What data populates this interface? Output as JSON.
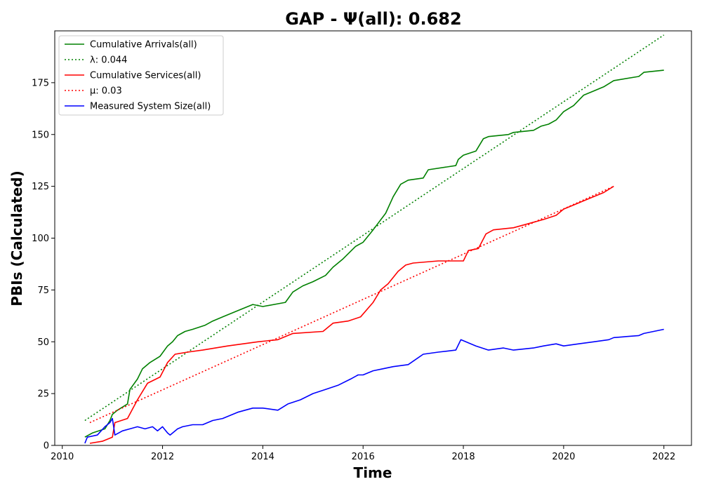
{
  "chart_data": {
    "type": "line",
    "title": "GAP -  Ψ(all): 0.682",
    "xlabel": "Time",
    "ylabel": "PBIs (Calculated)",
    "xlim": [
      2009.85,
      2022.55
    ],
    "ylim": [
      0,
      200
    ],
    "xticks": [
      2010,
      2012,
      2014,
      2016,
      2018,
      2020,
      2022
    ],
    "yticks": [
      0,
      25,
      50,
      75,
      100,
      125,
      150,
      175
    ],
    "grid": false,
    "legend_position": "top-left",
    "series": [
      {
        "name": "Cumulative Arrivals(all)",
        "style": "solid",
        "color": "#008000",
        "x": [
          2010.45,
          2010.6,
          2010.85,
          2010.95,
          2011.0,
          2011.1,
          2011.3,
          2011.35,
          2011.5,
          2011.6,
          2011.75,
          2011.95,
          2012.1,
          2012.2,
          2012.3,
          2012.45,
          2012.6,
          2012.85,
          2013.0,
          2013.2,
          2013.5,
          2013.8,
          2014.0,
          2014.45,
          2014.6,
          2014.8,
          2015.0,
          2015.25,
          2015.4,
          2015.6,
          2015.85,
          2016.0,
          2016.2,
          2016.45,
          2016.6,
          2016.75,
          2016.9,
          2017.2,
          2017.3,
          2017.85,
          2017.9,
          2018.0,
          2018.25,
          2018.4,
          2018.5,
          2018.9,
          2019.0,
          2019.4,
          2019.55,
          2019.7,
          2019.85,
          2020.0,
          2020.2,
          2020.4,
          2020.6,
          2020.8,
          2021.0,
          2021.5,
          2021.6,
          2022.0
        ],
        "y": [
          4,
          6,
          8,
          12,
          15,
          17,
          20,
          27,
          32,
          37,
          40,
          43,
          48,
          50,
          53,
          55,
          56,
          58,
          60,
          62,
          65,
          68,
          67,
          69,
          74,
          77,
          79,
          82,
          86,
          90,
          96,
          98,
          104,
          112,
          120,
          126,
          128,
          129,
          133,
          135,
          138,
          140,
          142,
          148,
          149,
          150,
          151,
          152,
          154,
          155,
          157,
          161,
          164,
          169,
          171,
          173,
          176,
          178,
          180,
          181
        ]
      },
      {
        "name": "λ: 0.044",
        "style": "dotted",
        "color": "#008000",
        "x": [
          2010.45,
          2022.0
        ],
        "y": [
          12,
          198
        ]
      },
      {
        "name": "Cumulative Services(all)",
        "style": "solid",
        "color": "#ff0000",
        "x": [
          2010.55,
          2010.8,
          2011.0,
          2011.05,
          2011.3,
          2011.5,
          2011.7,
          2011.95,
          2012.1,
          2012.25,
          2012.5,
          2012.8,
          2013.3,
          2013.9,
          2014.3,
          2014.6,
          2015.2,
          2015.4,
          2015.7,
          2015.95,
          2016.2,
          2016.35,
          2016.5,
          2016.7,
          2016.85,
          2017.0,
          2017.5,
          2018.0,
          2018.1,
          2018.3,
          2018.45,
          2018.6,
          2019.0,
          2019.3,
          2019.6,
          2019.85,
          2020.0,
          2020.2,
          2020.4,
          2020.6,
          2020.8,
          2021.0
        ],
        "y": [
          1,
          2,
          4,
          11,
          13,
          22,
          30,
          33,
          40,
          44,
          45,
          46,
          48,
          50,
          51,
          54,
          55,
          59,
          60,
          62,
          69,
          75,
          78,
          84,
          87,
          88,
          89,
          89,
          94,
          95,
          102,
          104,
          105,
          107,
          109,
          111,
          114,
          116,
          118,
          120,
          122,
          125
        ]
      },
      {
        "name": "μ: 0.03",
        "style": "dotted",
        "color": "#ff0000",
        "x": [
          2010.55,
          2021.0
        ],
        "y": [
          11,
          125
        ]
      },
      {
        "name": "Measured System Size(all)",
        "style": "solid",
        "color": "#0000ff",
        "x": [
          2010.45,
          2010.5,
          2010.7,
          2010.85,
          2010.95,
          2011.0,
          2011.05,
          2011.2,
          2011.35,
          2011.5,
          2011.65,
          2011.8,
          2011.9,
          2012.0,
          2012.1,
          2012.15,
          2012.3,
          2012.4,
          2012.6,
          2012.8,
          2013.0,
          2013.2,
          2013.5,
          2013.8,
          2014.0,
          2014.3,
          2014.5,
          2014.75,
          2015.0,
          2015.25,
          2015.5,
          2015.75,
          2015.9,
          2016.0,
          2016.2,
          2016.4,
          2016.6,
          2016.9,
          2017.2,
          2017.5,
          2017.85,
          2017.95,
          2018.25,
          2018.5,
          2018.8,
          2019.0,
          2019.4,
          2019.6,
          2019.85,
          2020.0,
          2020.3,
          2020.6,
          2020.9,
          2021.0,
          2021.5,
          2021.6,
          2022.0
        ],
        "y": [
          1,
          4,
          5,
          9,
          11,
          13,
          5,
          7,
          8,
          9,
          8,
          9,
          7,
          9,
          6,
          5,
          8,
          9,
          10,
          10,
          12,
          13,
          16,
          18,
          18,
          17,
          20,
          22,
          25,
          27,
          29,
          32,
          34,
          34,
          36,
          37,
          38,
          39,
          44,
          45,
          46,
          51,
          48,
          46,
          47,
          46,
          47,
          48,
          49,
          48,
          49,
          50,
          51,
          52,
          53,
          54,
          56
        ]
      }
    ]
  }
}
